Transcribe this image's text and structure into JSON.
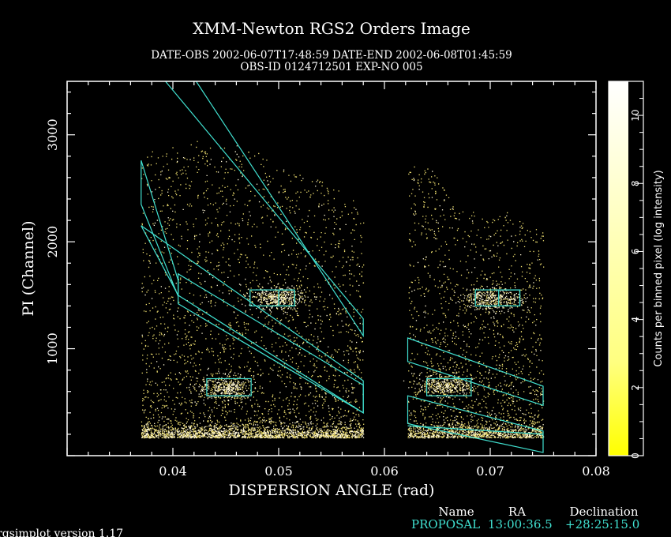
{
  "colors": {
    "background": "#000000",
    "foreground": "#ffffff",
    "region": "#40e0d0",
    "events_low": "#f0e070",
    "events_high": "#fff8d8",
    "colorbar_low": "#ffff00",
    "colorbar_high": "#ffffff",
    "proposal": "#40e0d0"
  },
  "chart_data": {
    "type": "heatmap",
    "title": "XMM-Newton  RGS2 Orders Image",
    "subtitle_line1": "DATE-OBS 2002-06-07T17:48:59   DATE-END 2002-06-08T01:45:59",
    "subtitle_line2": "OBS-ID 0124712501 EXP-NO 005",
    "xlabel": "DISPERSION ANGLE (rad)",
    "ylabel": "PI (Channel)",
    "xlim": [
      0.03,
      0.08
    ],
    "ylim": [
      0,
      3500
    ],
    "x_ticks": [
      0.04,
      0.05,
      0.06,
      0.07,
      0.08
    ],
    "x_tick_labels": [
      "0.04",
      "0.05",
      "0.06",
      "0.07",
      "0.08"
    ],
    "y_ticks": [
      1000,
      2000,
      3000
    ],
    "y_tick_labels": [
      "1000",
      "2000",
      "3000"
    ],
    "colorbar": {
      "label": "Counts per binned pixel (log intensity)",
      "range": [
        0,
        11
      ],
      "ticks": [
        0,
        2,
        4,
        6,
        8,
        10
      ],
      "tick_labels": [
        "0",
        "2",
        "4",
        "6",
        "8",
        "10"
      ]
    },
    "chips": [
      {
        "x_range": [
          0.037,
          0.058
        ],
        "pi_top": [
          2900,
          2920,
          2960,
          2950,
          2880,
          2700,
          2650,
          2500,
          2400
        ]
      },
      {
        "x_range": [
          0.0622,
          0.075
        ],
        "pi_top": [
          2700,
          2720,
          2500,
          2300,
          2250,
          2300,
          2200,
          2100
        ]
      }
    ],
    "bright_sources": [
      {
        "x": 0.0498,
        "pi": 1470,
        "dx": 0.0013,
        "dpi": 55,
        "weight": 450
      },
      {
        "x": 0.0703,
        "pi": 1470,
        "dx": 0.0014,
        "dpi": 55,
        "weight": 400
      },
      {
        "x": 0.045,
        "pi": 640,
        "dx": 0.0013,
        "dpi": 55,
        "weight": 420
      },
      {
        "x": 0.0657,
        "pi": 660,
        "dx": 0.0013,
        "dpi": 50,
        "weight": 380
      }
    ],
    "source_boxes": [
      {
        "x0": 0.0473,
        "x1": 0.0515,
        "pi0": 1400,
        "pi1": 1550
      },
      {
        "x0": 0.05,
        "x1": 0.0515,
        "pi0": 1400,
        "pi1": 1550
      },
      {
        "x0": 0.0686,
        "x1": 0.0728,
        "pi0": 1400,
        "pi1": 1550
      },
      {
        "x0": 0.0708,
        "x1": 0.0728,
        "pi0": 1400,
        "pi1": 1550
      },
      {
        "x0": 0.0432,
        "x1": 0.0474,
        "pi0": 560,
        "pi1": 720
      },
      {
        "x0": 0.064,
        "x1": 0.0682,
        "pi0": 560,
        "pi1": 720
      }
    ],
    "order_regions": [
      {
        "name": "order-1-left",
        "polygon": [
          [
            0.037,
            2760
          ],
          [
            0.0405,
            1640
          ],
          [
            0.0405,
            1490
          ],
          [
            0.037,
            2350
          ]
        ]
      },
      {
        "name": "order-1-left-b",
        "polygon": [
          [
            0.0405,
            1700
          ],
          [
            0.058,
            660
          ],
          [
            0.058,
            400
          ],
          [
            0.0405,
            1420
          ]
        ]
      },
      {
        "name": "order-1-main",
        "polygon": [
          [
            0.037,
            2150
          ],
          [
            0.058,
            700
          ],
          [
            0.058,
            400
          ],
          [
            0.0405,
            1500
          ]
        ]
      },
      {
        "name": "order-2-left",
        "polygon": [
          [
            0.0393,
            3500
          ],
          [
            0.058,
            1280
          ],
          [
            0.058,
            1120
          ],
          [
            0.0422,
            3500
          ]
        ]
      },
      {
        "name": "order-2-right",
        "polygon": [
          [
            0.0622,
            1100
          ],
          [
            0.075,
            650
          ],
          [
            0.075,
            470
          ],
          [
            0.0622,
            880
          ]
        ]
      },
      {
        "name": "order-1-right",
        "polygon": [
          [
            0.0622,
            560
          ],
          [
            0.075,
            230
          ],
          [
            0.075,
            30
          ],
          [
            0.0622,
            300
          ]
        ]
      },
      {
        "name": "order-1-right-b",
        "polygon": [
          [
            0.0622,
            280
          ],
          [
            0.075,
            200
          ]
        ]
      }
    ]
  },
  "footer": {
    "version": "rgsimplot version 1.17",
    "columns": [
      "Name",
      "RA",
      "Declination"
    ],
    "name": "PROPOSAL",
    "ra": "13:00:36.5",
    "dec": "+28:25:15.0"
  }
}
